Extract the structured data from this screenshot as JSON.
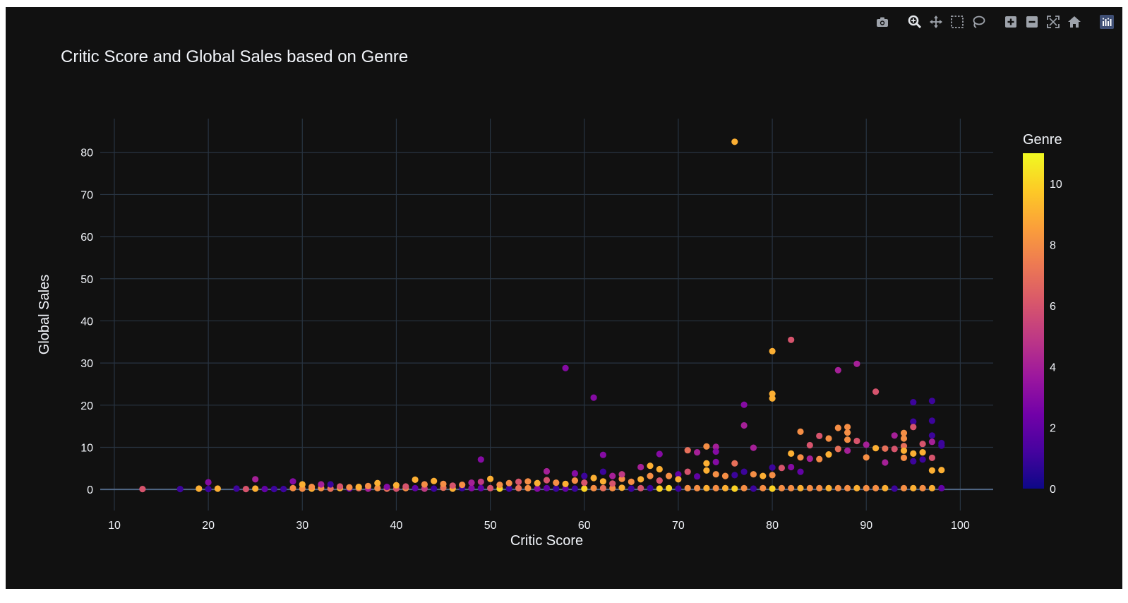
{
  "colors": {
    "background": "#111111",
    "grid": "#283442",
    "text": "#f2f5fa",
    "modebar_icon": "#9ea3ab",
    "modebar_active": "#e4e7eb",
    "logo_bg": "#3f4f75"
  },
  "modebar": {
    "buttons": [
      "camera-icon",
      "zoom-icon",
      "pan-icon",
      "box-select-icon",
      "lasso-icon",
      "zoom-in-icon",
      "zoom-out-icon",
      "autoscale-icon",
      "home-icon",
      "plotly-logo-icon"
    ]
  },
  "chart_data": {
    "type": "scatter",
    "title": "Critic Score and Global Sales based on Genre",
    "xlabel": "Critic Score",
    "ylabel": "Global Sales",
    "xlim": [
      8.5,
      103.5
    ],
    "ylim": [
      -5,
      88
    ],
    "xticks": [
      10,
      20,
      30,
      40,
      50,
      60,
      70,
      80,
      90,
      100
    ],
    "yticks": [
      0,
      10,
      20,
      30,
      40,
      50,
      60,
      70,
      80
    ],
    "grid": true,
    "colorbar": {
      "title": "Genre",
      "min": 0,
      "max": 11,
      "ticks": [
        0,
        2,
        4,
        6,
        8,
        10
      ],
      "colorscale": [
        "#0d0887",
        "#46039f",
        "#7201a8",
        "#9c179e",
        "#bd3786",
        "#d8576b",
        "#ed7953",
        "#fb9f3a",
        "#fdca26",
        "#f0f921"
      ]
    },
    "points": [
      [
        13,
        0.1,
        6
      ],
      [
        17,
        0.1,
        1
      ],
      [
        19,
        0.2,
        9
      ],
      [
        20,
        0.1,
        1
      ],
      [
        20,
        1.7,
        3
      ],
      [
        21,
        0.2,
        9
      ],
      [
        23,
        0.2,
        1
      ],
      [
        24,
        0.1,
        6
      ],
      [
        25,
        0.2,
        9
      ],
      [
        25,
        2.4,
        4
      ],
      [
        26,
        0.1,
        2
      ],
      [
        27,
        0.1,
        1
      ],
      [
        28,
        0.1,
        1
      ],
      [
        29,
        0.3,
        8
      ],
      [
        29,
        1.9,
        3
      ],
      [
        30,
        0.2,
        8
      ],
      [
        30,
        1.2,
        9
      ],
      [
        31,
        0.2,
        9
      ],
      [
        31,
        0.6,
        8
      ],
      [
        32,
        0.3,
        8
      ],
      [
        32,
        1.2,
        4
      ],
      [
        33,
        0.2,
        7
      ],
      [
        33,
        1.2,
        1
      ],
      [
        34,
        0.3,
        9
      ],
      [
        34,
        0.7,
        6
      ],
      [
        35,
        0.2,
        2
      ],
      [
        35,
        0.5,
        8
      ],
      [
        36,
        0.3,
        7
      ],
      [
        36,
        0.6,
        9
      ],
      [
        37,
        0.2,
        4
      ],
      [
        37,
        0.8,
        8
      ],
      [
        38,
        0.3,
        8
      ],
      [
        38,
        1.5,
        9
      ],
      [
        39,
        0.2,
        7
      ],
      [
        39,
        0.6,
        3
      ],
      [
        40,
        0.2,
        6
      ],
      [
        40,
        1.0,
        9
      ],
      [
        41,
        0.3,
        8
      ],
      [
        41,
        0.7,
        6
      ],
      [
        42,
        0.3,
        2
      ],
      [
        42,
        2.3,
        9
      ],
      [
        43,
        0.2,
        5
      ],
      [
        43,
        1.2,
        8
      ],
      [
        44,
        0.2,
        1
      ],
      [
        44,
        2.0,
        9
      ],
      [
        45,
        0.4,
        7
      ],
      [
        45,
        1.3,
        8
      ],
      [
        46,
        0.2,
        9
      ],
      [
        46,
        0.9,
        6
      ],
      [
        47,
        0.3,
        1
      ],
      [
        47,
        1.1,
        8
      ],
      [
        48,
        0.3,
        3
      ],
      [
        48,
        1.6,
        4
      ],
      [
        49,
        0.3,
        2
      ],
      [
        49,
        7.1,
        3
      ],
      [
        49,
        1.8,
        5
      ],
      [
        50,
        0.3,
        6
      ],
      [
        50,
        2.5,
        9
      ],
      [
        51,
        0.2,
        10
      ],
      [
        51,
        1.1,
        8
      ],
      [
        52,
        0.2,
        1
      ],
      [
        52,
        1.5,
        8
      ],
      [
        53,
        0.3,
        7
      ],
      [
        53,
        1.8,
        6
      ],
      [
        54,
        0.3,
        8
      ],
      [
        54,
        1.9,
        8
      ],
      [
        55,
        0.2,
        3
      ],
      [
        55,
        1.5,
        9
      ],
      [
        56,
        0.3,
        2
      ],
      [
        56,
        4.3,
        4
      ],
      [
        56,
        2.2,
        6
      ],
      [
        57,
        0.2,
        1
      ],
      [
        57,
        1.6,
        8
      ],
      [
        58,
        0.2,
        2
      ],
      [
        58,
        28.8,
        3
      ],
      [
        58,
        1.3,
        9
      ],
      [
        59,
        0.2,
        1
      ],
      [
        59,
        3.8,
        3
      ],
      [
        59,
        2.1,
        8
      ],
      [
        60,
        0.2,
        10
      ],
      [
        60,
        3.2,
        1
      ],
      [
        60,
        1.6,
        6
      ],
      [
        61,
        0.3,
        8
      ],
      [
        61,
        21.8,
        3
      ],
      [
        61,
        2.7,
        9
      ],
      [
        62,
        0.3,
        7
      ],
      [
        62,
        8.2,
        3
      ],
      [
        62,
        4.2,
        1
      ],
      [
        62,
        1.9,
        9
      ],
      [
        63,
        0.3,
        8
      ],
      [
        63,
        3.2,
        4
      ],
      [
        63,
        1.4,
        6
      ],
      [
        64,
        0.4,
        9
      ],
      [
        64,
        2.5,
        8
      ],
      [
        64,
        3.6,
        5
      ],
      [
        65,
        0.2,
        1
      ],
      [
        65,
        1.8,
        8
      ],
      [
        66,
        0.3,
        6
      ],
      [
        66,
        5.3,
        4
      ],
      [
        66,
        2.4,
        9
      ],
      [
        67,
        0.3,
        1
      ],
      [
        67,
        5.6,
        9
      ],
      [
        67,
        3.2,
        8
      ],
      [
        68,
        0.2,
        10
      ],
      [
        68,
        8.4,
        3
      ],
      [
        68,
        4.8,
        9
      ],
      [
        68,
        2.1,
        6
      ],
      [
        69,
        0.3,
        10
      ],
      [
        69,
        3.2,
        8
      ],
      [
        70,
        0.2,
        1
      ],
      [
        70,
        3.6,
        2
      ],
      [
        70,
        2.4,
        9
      ],
      [
        71,
        0.3,
        8
      ],
      [
        71,
        9.3,
        7
      ],
      [
        71,
        4.2,
        6
      ],
      [
        72,
        0.3,
        8
      ],
      [
        72,
        8.8,
        4
      ],
      [
        72,
        3.1,
        2
      ],
      [
        73,
        0.3,
        9
      ],
      [
        73,
        10.2,
        8
      ],
      [
        73,
        6.2,
        9
      ],
      [
        73,
        4.5,
        9
      ],
      [
        74,
        0.3,
        8
      ],
      [
        74,
        10.1,
        4
      ],
      [
        74,
        9.0,
        3
      ],
      [
        74,
        6.5,
        3
      ],
      [
        74,
        3.6,
        8
      ],
      [
        75,
        0.3,
        9
      ],
      [
        75,
        3.2,
        8
      ],
      [
        76,
        0.2,
        10
      ],
      [
        76,
        82.5,
        9
      ],
      [
        76,
        6.2,
        7
      ],
      [
        76,
        3.4,
        1
      ],
      [
        77,
        0.3,
        8
      ],
      [
        77,
        20.1,
        3
      ],
      [
        77,
        15.2,
        4
      ],
      [
        77,
        4.2,
        1
      ],
      [
        78,
        0.2,
        1
      ],
      [
        78,
        9.9,
        4
      ],
      [
        78,
        3.6,
        8
      ],
      [
        79,
        0.3,
        8
      ],
      [
        79,
        3.2,
        9
      ],
      [
        80,
        0.2,
        10
      ],
      [
        80,
        32.8,
        9
      ],
      [
        80,
        22.7,
        9
      ],
      [
        80,
        21.6,
        9
      ],
      [
        80,
        5.2,
        1
      ],
      [
        80,
        3.4,
        8
      ],
      [
        81,
        0.3,
        8
      ],
      [
        81,
        5.1,
        6
      ],
      [
        82,
        0.3,
        8
      ],
      [
        82,
        35.5,
        6
      ],
      [
        82,
        8.5,
        9
      ],
      [
        82,
        5.3,
        3
      ],
      [
        83,
        0.3,
        9
      ],
      [
        83,
        13.7,
        8
      ],
      [
        83,
        7.6,
        8
      ],
      [
        83,
        4.2,
        2
      ],
      [
        84,
        0.3,
        8
      ],
      [
        84,
        10.5,
        6
      ],
      [
        84,
        7.3,
        4
      ],
      [
        85,
        0.3,
        8
      ],
      [
        85,
        12.7,
        6
      ],
      [
        85,
        7.2,
        8
      ],
      [
        86,
        0.3,
        9
      ],
      [
        86,
        12.1,
        8
      ],
      [
        86,
        8.3,
        9
      ],
      [
        87,
        0.3,
        8
      ],
      [
        87,
        28.3,
        4
      ],
      [
        87,
        14.6,
        8
      ],
      [
        87,
        9.6,
        7
      ],
      [
        88,
        0.3,
        8
      ],
      [
        88,
        14.8,
        8
      ],
      [
        88,
        13.5,
        8
      ],
      [
        88,
        11.8,
        8
      ],
      [
        88,
        9.2,
        4
      ],
      [
        89,
        0.3,
        9
      ],
      [
        89,
        29.8,
        4
      ],
      [
        89,
        11.5,
        6
      ],
      [
        90,
        0.3,
        8
      ],
      [
        90,
        10.6,
        4
      ],
      [
        90,
        7.6,
        8
      ],
      [
        91,
        0.3,
        8
      ],
      [
        91,
        23.2,
        6
      ],
      [
        91,
        9.8,
        9
      ],
      [
        92,
        0.3,
        9
      ],
      [
        92,
        9.7,
        7
      ],
      [
        92,
        6.4,
        4
      ],
      [
        93,
        0.2,
        1
      ],
      [
        93,
        12.8,
        4
      ],
      [
        93,
        9.6,
        6
      ],
      [
        94,
        0.3,
        8
      ],
      [
        94,
        13.4,
        8
      ],
      [
        94,
        12.1,
        8
      ],
      [
        94,
        10.3,
        7
      ],
      [
        94,
        9.2,
        9
      ],
      [
        94,
        7.5,
        8
      ],
      [
        95,
        0.3,
        9
      ],
      [
        95,
        20.7,
        1
      ],
      [
        95,
        16.1,
        1
      ],
      [
        95,
        14.8,
        6
      ],
      [
        95,
        8.5,
        9
      ],
      [
        95,
        6.7,
        1
      ],
      [
        96,
        0.3,
        8
      ],
      [
        96,
        10.8,
        6
      ],
      [
        96,
        8.8,
        9
      ],
      [
        96,
        7.1,
        1
      ],
      [
        97,
        0.3,
        9
      ],
      [
        97,
        21.0,
        1
      ],
      [
        97,
        16.3,
        1
      ],
      [
        97,
        12.8,
        1
      ],
      [
        97,
        11.3,
        4
      ],
      [
        97,
        7.5,
        6
      ],
      [
        97,
        4.5,
        9
      ],
      [
        98,
        0.3,
        2
      ],
      [
        98,
        11.0,
        1
      ],
      [
        98,
        10.4,
        1
      ],
      [
        98,
        4.6,
        9
      ]
    ]
  }
}
